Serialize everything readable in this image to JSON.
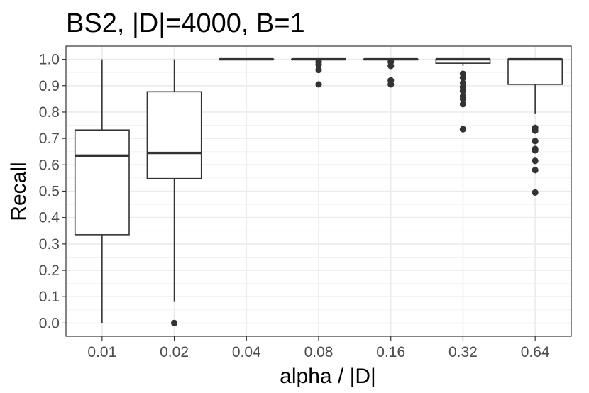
{
  "chart_data": {
    "type": "boxplot",
    "title": "BS2, |D|=4000, B=1",
    "xlabel": "alpha / |D|",
    "ylabel": "Recall",
    "ylim": [
      -0.05,
      1.05
    ],
    "yticks": [
      "0.0",
      "0.1",
      "0.2",
      "0.3",
      "0.4",
      "0.5",
      "0.6",
      "0.7",
      "0.8",
      "0.9",
      "1.0"
    ],
    "categories": [
      "0.01",
      "0.02",
      "0.04",
      "0.08",
      "0.16",
      "0.32",
      "0.64"
    ],
    "boxes": [
      {
        "category": "0.01",
        "whisker_low": 0.0,
        "q1": 0.335,
        "median": 0.635,
        "q3": 0.732,
        "whisker_high": 1.0,
        "outliers": []
      },
      {
        "category": "0.02",
        "whisker_low": 0.08,
        "q1": 0.548,
        "median": 0.645,
        "q3": 0.877,
        "whisker_high": 1.0,
        "outliers": [
          0.0
        ]
      },
      {
        "category": "0.04",
        "whisker_low": 1.0,
        "q1": 1.0,
        "median": 1.0,
        "q3": 1.0,
        "whisker_high": 1.0,
        "outliers": []
      },
      {
        "category": "0.08",
        "whisker_low": 1.0,
        "q1": 1.0,
        "median": 1.0,
        "q3": 1.0,
        "whisker_high": 1.0,
        "outliers": [
          0.99,
          0.98,
          0.96,
          0.905
        ]
      },
      {
        "category": "0.16",
        "whisker_low": 1.0,
        "q1": 1.0,
        "median": 1.0,
        "q3": 1.0,
        "whisker_high": 1.0,
        "outliers": [
          0.99,
          0.975,
          0.92,
          0.905
        ]
      },
      {
        "category": "0.32",
        "whisker_low": 0.975,
        "q1": 0.985,
        "median": 1.0,
        "q3": 1.0,
        "whisker_high": 1.0,
        "outliers": [
          0.945,
          0.93,
          0.91,
          0.895,
          0.88,
          0.86,
          0.85,
          0.83,
          0.735
        ]
      },
      {
        "category": "0.64",
        "whisker_low": 0.795,
        "q1": 0.905,
        "median": 1.0,
        "q3": 1.0,
        "whisker_high": 1.0,
        "outliers": [
          0.74,
          0.73,
          0.69,
          0.66,
          0.655,
          0.615,
          0.58,
          0.495
        ]
      }
    ],
    "grid": true,
    "colors": {
      "box_fill": "#ffffff",
      "line": "#333333",
      "grid": "#ebebeb",
      "panel_border": "#333333",
      "tick_text": "#4d4d4d"
    }
  }
}
